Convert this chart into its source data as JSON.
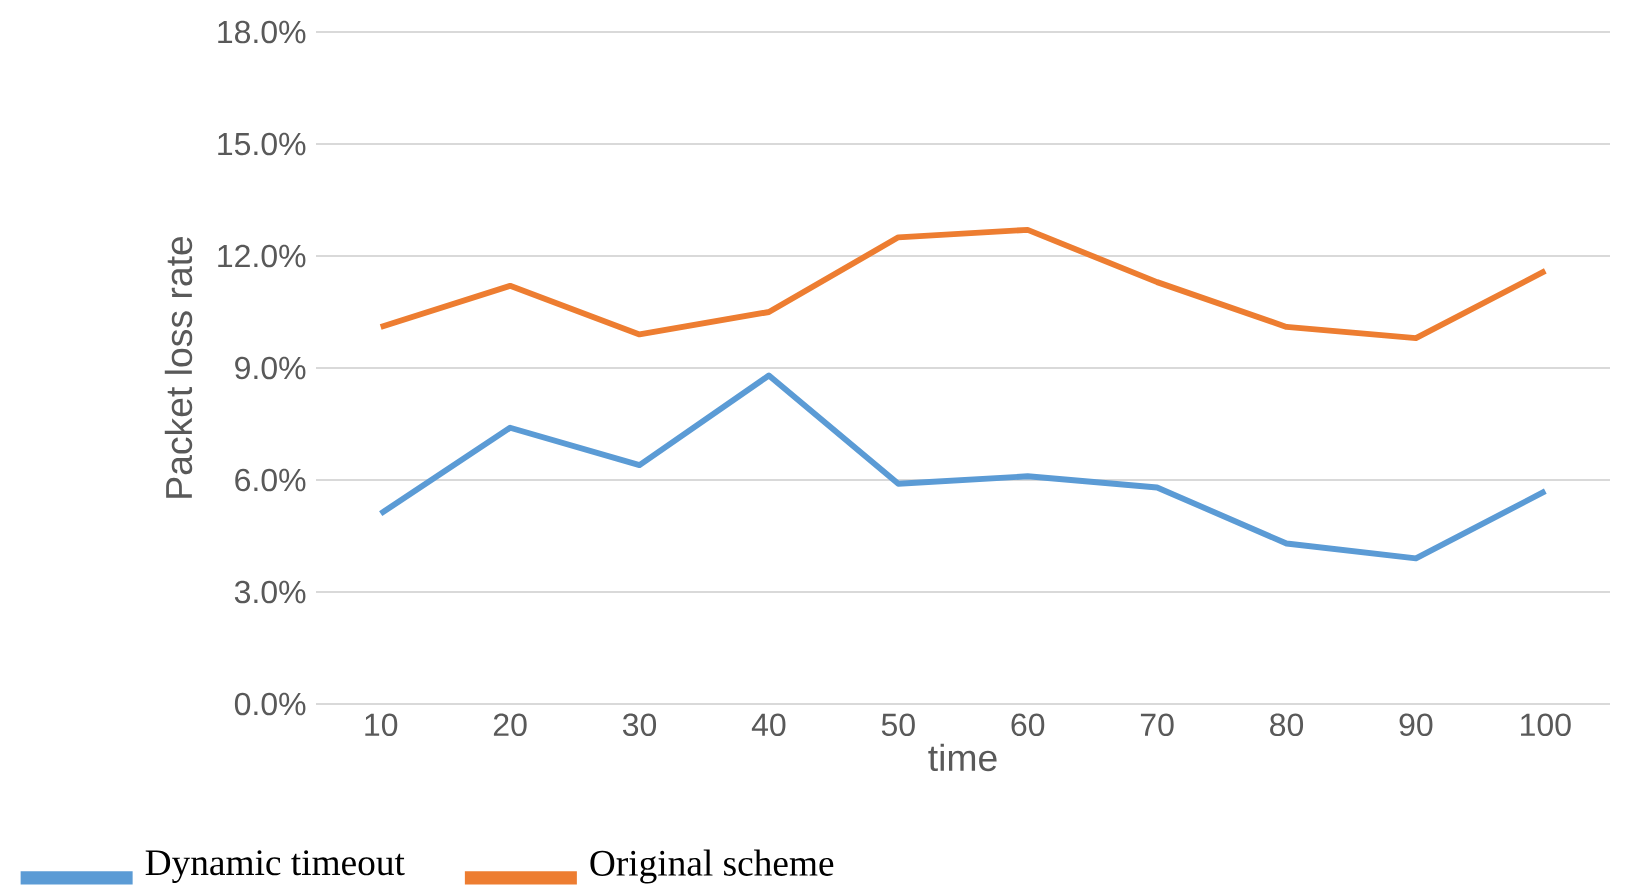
{
  "chart_data": {
    "type": "line",
    "xlabel": "time",
    "ylabel": "Packet loss rate",
    "categories": [
      "10",
      "20",
      "30",
      "40",
      "50",
      "60",
      "70",
      "80",
      "90",
      "100"
    ],
    "series": [
      {
        "name": "Dynamic timeout",
        "color": "#5b9bd5",
        "values": [
          5.1,
          7.4,
          6.4,
          8.8,
          5.9,
          6.1,
          5.8,
          4.3,
          3.9,
          5.7
        ]
      },
      {
        "name": "Original scheme",
        "color": "#ed7d31",
        "values": [
          10.1,
          11.2,
          9.9,
          10.5,
          12.5,
          12.7,
          11.3,
          10.1,
          9.8,
          11.6
        ]
      }
    ],
    "ylim": [
      0,
      18
    ],
    "yticks": [
      {
        "value": 0,
        "label": "0.0%"
      },
      {
        "value": 3,
        "label": "3.0%"
      },
      {
        "value": 6,
        "label": "6.0%"
      },
      {
        "value": 9,
        "label": "9.0%"
      },
      {
        "value": 12,
        "label": "12.0%"
      },
      {
        "value": 15,
        "label": "15.0%"
      },
      {
        "value": 18,
        "label": "18.0%"
      }
    ],
    "grid": "y",
    "legend": "bottom left"
  }
}
